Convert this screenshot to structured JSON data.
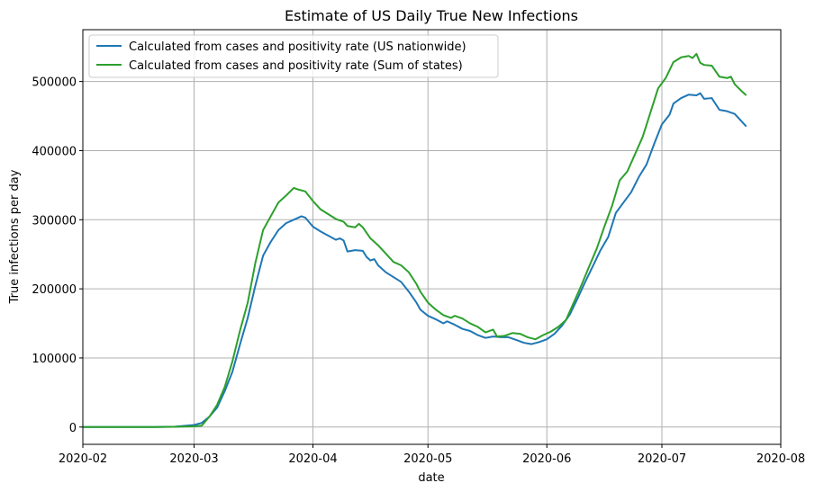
{
  "chart_data": {
    "type": "line",
    "title": "Estimate of US Daily True New Infections",
    "xlabel": "date",
    "ylabel": "True infections per day",
    "xlim": [
      "2020-02-01",
      "2020-08-01"
    ],
    "ylim": [
      -25000,
      575000
    ],
    "x_ticks": [
      "2020-02",
      "2020-03",
      "2020-04",
      "2020-05",
      "2020-06",
      "2020-07",
      "2020-08"
    ],
    "y_ticks": [
      0,
      100000,
      200000,
      300000,
      400000,
      500000
    ],
    "y_tick_labels": [
      "0",
      "100000",
      "200000",
      "300000",
      "400000",
      "500000"
    ],
    "grid": true,
    "legend_position": "top-left",
    "series": [
      {
        "name": "Calculated from cases and positivity rate (US nationwide)",
        "color": "#1f77b4",
        "points": [
          [
            "2020-02-01",
            0
          ],
          [
            "2020-02-10",
            0
          ],
          [
            "2020-02-20",
            0
          ],
          [
            "2020-02-25",
            500
          ],
          [
            "2020-03-01",
            3000
          ],
          [
            "2020-03-03",
            6000
          ],
          [
            "2020-03-05",
            15000
          ],
          [
            "2020-03-07",
            28000
          ],
          [
            "2020-03-09",
            52000
          ],
          [
            "2020-03-11",
            80000
          ],
          [
            "2020-03-13",
            120000
          ],
          [
            "2020-03-15",
            158000
          ],
          [
            "2020-03-17",
            205000
          ],
          [
            "2020-03-19",
            248000
          ],
          [
            "2020-03-21",
            268000
          ],
          [
            "2020-03-23",
            285000
          ],
          [
            "2020-03-25",
            295000
          ],
          [
            "2020-03-27",
            300000
          ],
          [
            "2020-03-29",
            305000
          ],
          [
            "2020-03-30",
            303000
          ],
          [
            "2020-04-01",
            290000
          ],
          [
            "2020-04-03",
            283000
          ],
          [
            "2020-04-05",
            277000
          ],
          [
            "2020-04-07",
            271000
          ],
          [
            "2020-04-08",
            273000
          ],
          [
            "2020-04-09",
            270000
          ],
          [
            "2020-04-10",
            254000
          ],
          [
            "2020-04-12",
            256000
          ],
          [
            "2020-04-14",
            255000
          ],
          [
            "2020-04-15",
            246000
          ],
          [
            "2020-04-16",
            241000
          ],
          [
            "2020-04-17",
            243000
          ],
          [
            "2020-04-18",
            234000
          ],
          [
            "2020-04-20",
            224000
          ],
          [
            "2020-04-22",
            217000
          ],
          [
            "2020-04-24",
            210000
          ],
          [
            "2020-04-26",
            196000
          ],
          [
            "2020-04-28",
            180000
          ],
          [
            "2020-04-29",
            170000
          ],
          [
            "2020-05-01",
            161000
          ],
          [
            "2020-05-03",
            156000
          ],
          [
            "2020-05-05",
            150000
          ],
          [
            "2020-05-06",
            153000
          ],
          [
            "2020-05-08",
            148000
          ],
          [
            "2020-05-10",
            142000
          ],
          [
            "2020-05-12",
            139000
          ],
          [
            "2020-05-14",
            133000
          ],
          [
            "2020-05-16",
            129000
          ],
          [
            "2020-05-18",
            131000
          ],
          [
            "2020-05-20",
            130000
          ],
          [
            "2020-05-22",
            130000
          ],
          [
            "2020-05-24",
            126000
          ],
          [
            "2020-05-26",
            122000
          ],
          [
            "2020-05-28",
            120000
          ],
          [
            "2020-05-30",
            123000
          ],
          [
            "2020-06-01",
            127000
          ],
          [
            "2020-06-03",
            135000
          ],
          [
            "2020-06-05",
            147000
          ],
          [
            "2020-06-07",
            163000
          ],
          [
            "2020-06-09",
            186000
          ],
          [
            "2020-06-11",
            210000
          ],
          [
            "2020-06-13",
            233000
          ],
          [
            "2020-06-15",
            256000
          ],
          [
            "2020-06-17",
            275000
          ],
          [
            "2020-06-19",
            310000
          ],
          [
            "2020-06-21",
            325000
          ],
          [
            "2020-06-23",
            340000
          ],
          [
            "2020-06-25",
            362000
          ],
          [
            "2020-06-27",
            380000
          ],
          [
            "2020-06-29",
            410000
          ],
          [
            "2020-07-01",
            438000
          ],
          [
            "2020-07-03",
            452000
          ],
          [
            "2020-07-04",
            468000
          ],
          [
            "2020-07-06",
            476000
          ],
          [
            "2020-07-08",
            481000
          ],
          [
            "2020-07-10",
            480000
          ],
          [
            "2020-07-11",
            483000
          ],
          [
            "2020-07-12",
            475000
          ],
          [
            "2020-07-14",
            476000
          ],
          [
            "2020-07-16",
            459000
          ],
          [
            "2020-07-18",
            457000
          ],
          [
            "2020-07-20",
            453000
          ],
          [
            "2020-07-21",
            447000
          ],
          [
            "2020-07-23",
            435000
          ]
        ]
      },
      {
        "name": "Calculated from cases and positivity rate (Sum of states)",
        "color": "#2ca02c",
        "points": [
          [
            "2020-02-01",
            0
          ],
          [
            "2020-02-10",
            0
          ],
          [
            "2020-02-20",
            0
          ],
          [
            "2020-02-25",
            300
          ],
          [
            "2020-03-01",
            1000
          ],
          [
            "2020-03-03",
            2000
          ],
          [
            "2020-03-05",
            15000
          ],
          [
            "2020-03-07",
            32000
          ],
          [
            "2020-03-09",
            58000
          ],
          [
            "2020-03-11",
            95000
          ],
          [
            "2020-03-13",
            140000
          ],
          [
            "2020-03-15",
            180000
          ],
          [
            "2020-03-17",
            238000
          ],
          [
            "2020-03-19",
            285000
          ],
          [
            "2020-03-21",
            305000
          ],
          [
            "2020-03-23",
            325000
          ],
          [
            "2020-03-25",
            335000
          ],
          [
            "2020-03-27",
            346000
          ],
          [
            "2020-03-28",
            344000
          ],
          [
            "2020-03-30",
            341000
          ],
          [
            "2020-04-01",
            327000
          ],
          [
            "2020-04-03",
            315000
          ],
          [
            "2020-04-05",
            308000
          ],
          [
            "2020-04-07",
            301000
          ],
          [
            "2020-04-09",
            297000
          ],
          [
            "2020-04-10",
            291000
          ],
          [
            "2020-04-12",
            289000
          ],
          [
            "2020-04-13",
            294000
          ],
          [
            "2020-04-14",
            289000
          ],
          [
            "2020-04-16",
            273000
          ],
          [
            "2020-04-18",
            263000
          ],
          [
            "2020-04-20",
            251000
          ],
          [
            "2020-04-22",
            239000
          ],
          [
            "2020-04-24",
            234000
          ],
          [
            "2020-04-26",
            224000
          ],
          [
            "2020-04-28",
            207000
          ],
          [
            "2020-04-29",
            196000
          ],
          [
            "2020-05-01",
            180000
          ],
          [
            "2020-05-03",
            170000
          ],
          [
            "2020-05-05",
            162000
          ],
          [
            "2020-05-07",
            158000
          ],
          [
            "2020-05-08",
            161000
          ],
          [
            "2020-05-10",
            157000
          ],
          [
            "2020-05-12",
            150000
          ],
          [
            "2020-05-14",
            145000
          ],
          [
            "2020-05-16",
            137000
          ],
          [
            "2020-05-18",
            141000
          ],
          [
            "2020-05-19",
            131000
          ],
          [
            "2020-05-21",
            132000
          ],
          [
            "2020-05-23",
            136000
          ],
          [
            "2020-05-25",
            135000
          ],
          [
            "2020-05-27",
            130000
          ],
          [
            "2020-05-29",
            127000
          ],
          [
            "2020-05-31",
            133000
          ],
          [
            "2020-06-02",
            138000
          ],
          [
            "2020-06-04",
            145000
          ],
          [
            "2020-06-06",
            155000
          ],
          [
            "2020-06-08",
            180000
          ],
          [
            "2020-06-10",
            205000
          ],
          [
            "2020-06-12",
            232000
          ],
          [
            "2020-06-14",
            258000
          ],
          [
            "2020-06-16",
            290000
          ],
          [
            "2020-06-18",
            320000
          ],
          [
            "2020-06-20",
            357000
          ],
          [
            "2020-06-22",
            370000
          ],
          [
            "2020-06-24",
            395000
          ],
          [
            "2020-06-26",
            420000
          ],
          [
            "2020-06-28",
            455000
          ],
          [
            "2020-06-30",
            490000
          ],
          [
            "2020-07-02",
            505000
          ],
          [
            "2020-07-04",
            528000
          ],
          [
            "2020-07-06",
            535000
          ],
          [
            "2020-07-08",
            537000
          ],
          [
            "2020-07-09",
            534000
          ],
          [
            "2020-07-10",
            540000
          ],
          [
            "2020-07-11",
            527000
          ],
          [
            "2020-07-12",
            524000
          ],
          [
            "2020-07-14",
            523000
          ],
          [
            "2020-07-16",
            507000
          ],
          [
            "2020-07-18",
            505000
          ],
          [
            "2020-07-19",
            507000
          ],
          [
            "2020-07-20",
            496000
          ],
          [
            "2020-07-22",
            485000
          ],
          [
            "2020-07-23",
            480000
          ]
        ]
      }
    ]
  }
}
